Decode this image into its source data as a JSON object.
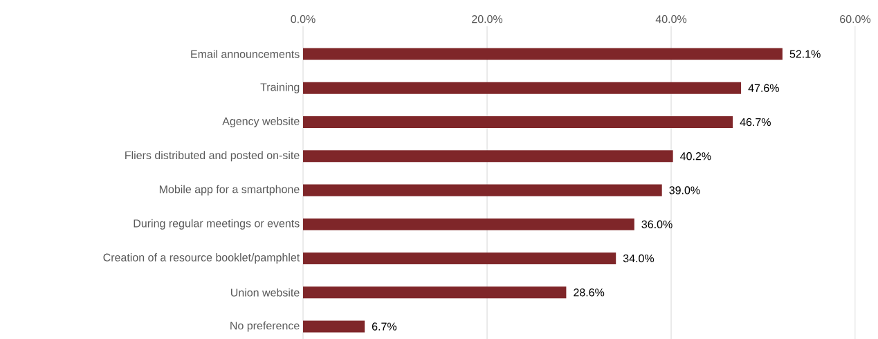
{
  "chart_data": {
    "type": "bar",
    "orientation": "horizontal",
    "categories": [
      "Email announcements",
      "Training",
      "Agency website",
      "Fliers distributed and posted on-site",
      "Mobile app for a smartphone",
      "During regular meetings or events",
      "Creation of a resource booklet/pamphlet",
      "Union website",
      "No preference"
    ],
    "values": [
      52.1,
      47.6,
      46.7,
      40.2,
      39.0,
      36.0,
      34.0,
      28.6,
      6.7
    ],
    "value_labels": [
      "52.1%",
      "47.6%",
      "46.7%",
      "40.2%",
      "39.0%",
      "36.0%",
      "34.0%",
      "28.6%",
      "6.7%"
    ],
    "color": "#7f2629",
    "xlim": [
      0,
      60
    ],
    "xticks": [
      {
        "value": 0,
        "label": "0.0%"
      },
      {
        "value": 20,
        "label": "20.0%"
      },
      {
        "value": 40,
        "label": "40.0%"
      },
      {
        "value": 60,
        "label": "60.0%"
      }
    ],
    "grid": "x"
  }
}
